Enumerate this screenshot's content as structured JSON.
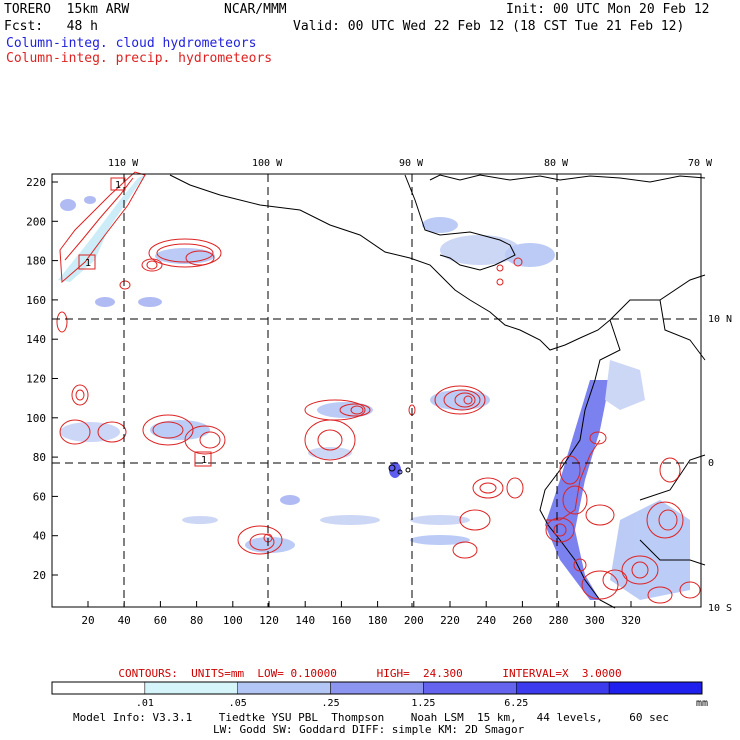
{
  "header": {
    "model": "TORERO  15km ARW",
    "org": "NCAR/MMM",
    "init": "Init: 00 UTC Mon 20 Feb 12",
    "fcst": "Fcst:   48 h",
    "valid": "Valid: 00 UTC Wed 22 Feb 12 (18 CST Tue 21 Feb 12)",
    "field1": "Column-integ. cloud hydrometeors",
    "field2": "Column-integ. precip. hydrometeors"
  },
  "map": {
    "top_lon_labels": [
      "110 W",
      "100 W",
      "90 W",
      "80 W",
      "70 W"
    ],
    "right_lat_labels": [
      "10 N",
      "0",
      "10 S"
    ],
    "x_ticks": [
      "20",
      "40",
      "60",
      "80",
      "100",
      "120",
      "140",
      "160",
      "180",
      "200",
      "220",
      "240",
      "260",
      "280",
      "300",
      "320"
    ],
    "y_ticks": [
      "220",
      "200",
      "180",
      "160",
      "140",
      "120",
      "100",
      "80",
      "60",
      "40",
      "20"
    ],
    "box_labels": [
      "1",
      "1",
      "1"
    ]
  },
  "contours_info": {
    "label": "CONTOURS:  UNITS=mm  LOW= 0.10000      HIGH=  24.300      INTERVAL=X  3.0000"
  },
  "colorbar": {
    "levels": [
      ".01",
      ".05",
      ".25",
      "1.25",
      "6.25"
    ],
    "unit": "mm",
    "colors": [
      "#ffffff",
      "#d6f5fa",
      "#b4c6f5",
      "#8c96f0",
      "#6464ee",
      "#3c3cee",
      "#2020ee"
    ]
  },
  "footer": {
    "line1": "Model Info: V3.3.1    Tiedtke YSU PBL  Thompson    Noah LSM  15 km,   44 levels,    60 sec",
    "line2": "LW: Godd SW: Goddard DIFF: simple KM: 2D Smagor"
  }
}
